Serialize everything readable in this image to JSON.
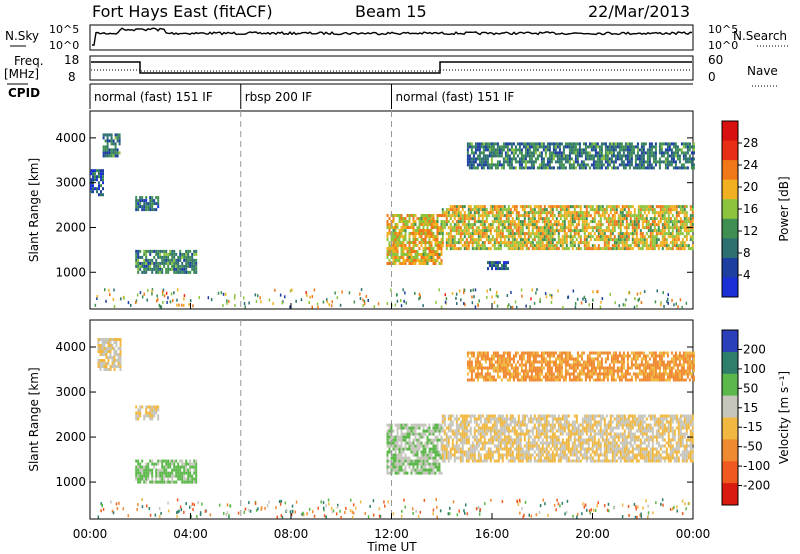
{
  "header": {
    "title": "Fort Hays East (fitACF)",
    "beam": "Beam 15",
    "date": "22/Mar/2013"
  },
  "status_panel": {
    "nsky_label": "N.Sky",
    "nsearch_label": "N.Search",
    "noise_ticks": [
      "10^5",
      "10^0"
    ],
    "freq_label": "Freq.",
    "freq_unit": "[MHz]",
    "freq_ticks": [
      "18",
      "8"
    ],
    "nave_label": "Nave",
    "nave_ticks": [
      "60",
      "0"
    ],
    "cpid_label": "CPID",
    "cpid_segments": [
      {
        "label": "normal (fast) 151 IF",
        "start_hour": 0,
        "end_hour": 6
      },
      {
        "label": "rbsp 200 IF",
        "start_hour": 6,
        "end_hour": 12
      },
      {
        "label": "normal (fast) 151 IF",
        "start_hour": 12,
        "end_hour": 24
      }
    ]
  },
  "colors": {
    "power_scale": [
      "#1a2fd6",
      "#1c3fa0",
      "#2e7070",
      "#3f8f52",
      "#8cc43e",
      "#f0b020",
      "#f07818",
      "#e82e16",
      "#d81010"
    ],
    "velocity_scale": [
      "#2a3fb8",
      "#2d7e6a",
      "#5cb84a",
      "#c6c6bc",
      "#f0b840",
      "#f08a30",
      "#f05a20",
      "#d81a10"
    ]
  },
  "chart_data": [
    {
      "type": "heatmap",
      "title": "",
      "xlabel": "Time UT",
      "ylabel": "Slant Range [km]",
      "xlim": [
        0,
        24
      ],
      "ylim": [
        180,
        4600
      ],
      "x_ticks": [
        "00:00",
        "04:00",
        "08:00",
        "12:00",
        "16:00",
        "20:00",
        "00:00"
      ],
      "y_ticks": [
        "1000",
        "2000",
        "3000",
        "4000"
      ],
      "colorbar_label": "Power [dB]",
      "colorbar_ticks": [
        "4",
        "8",
        "12",
        "16",
        "20",
        "24",
        "28"
      ],
      "colorbar_range": [
        0,
        30
      ],
      "mode_boundaries_hours": [
        6,
        12
      ],
      "echo_regions": [
        {
          "t_start": 0.0,
          "t_end": 0.5,
          "r_low": 2700,
          "r_high": 3300,
          "value": 6
        },
        {
          "t_start": 0.5,
          "t_end": 1.2,
          "r_low": 3600,
          "r_high": 4100,
          "value": 9
        },
        {
          "t_start": 1.8,
          "t_end": 2.7,
          "r_low": 2400,
          "r_high": 2700,
          "value": 8
        },
        {
          "t_start": 1.8,
          "t_end": 4.2,
          "r_low": 1000,
          "r_high": 1500,
          "value": 10
        },
        {
          "t_start": 11.8,
          "t_end": 14.0,
          "r_low": 1200,
          "r_high": 2300,
          "value": 18
        },
        {
          "t_start": 14.0,
          "t_end": 24.0,
          "r_low": 1500,
          "r_high": 2500,
          "value": 17
        },
        {
          "t_start": 15.0,
          "t_end": 24.0,
          "r_low": 3300,
          "r_high": 3900,
          "value": 9
        },
        {
          "t_start": 15.8,
          "t_end": 16.6,
          "r_low": 1050,
          "r_high": 1250,
          "value": 6
        }
      ]
    },
    {
      "type": "heatmap",
      "title": "",
      "xlabel": "Time UT",
      "ylabel": "Slant Range [km]",
      "xlim": [
        0,
        24
      ],
      "ylim": [
        180,
        4600
      ],
      "x_ticks": [
        "00:00",
        "04:00",
        "08:00",
        "12:00",
        "16:00",
        "20:00",
        "00:00"
      ],
      "y_ticks": [
        "1000",
        "2000",
        "3000",
        "4000"
      ],
      "colorbar_label": "Velocity [m s⁻¹]",
      "colorbar_ticks": [
        "200",
        "100",
        "50",
        "15",
        "-15",
        "-50",
        "-100",
        "-200"
      ],
      "colorbar_range": [
        -250,
        250
      ],
      "mode_boundaries_hours": [
        6,
        12
      ],
      "echo_regions": [
        {
          "t_start": 0.3,
          "t_end": 1.2,
          "r_low": 3500,
          "r_high": 4200,
          "value": 0
        },
        {
          "t_start": 1.8,
          "t_end": 2.7,
          "r_low": 2400,
          "r_high": 2700,
          "value": 0
        },
        {
          "t_start": 1.8,
          "t_end": 4.2,
          "r_low": 1000,
          "r_high": 1500,
          "value": 40
        },
        {
          "t_start": 11.8,
          "t_end": 14.0,
          "r_low": 1200,
          "r_high": 2300,
          "value": 30
        },
        {
          "t_start": 14.0,
          "t_end": 24.0,
          "r_low": 1500,
          "r_high": 2500,
          "value": 0
        },
        {
          "t_start": 15.0,
          "t_end": 24.0,
          "r_low": 3300,
          "r_high": 3900,
          "value": -40
        }
      ]
    }
  ]
}
